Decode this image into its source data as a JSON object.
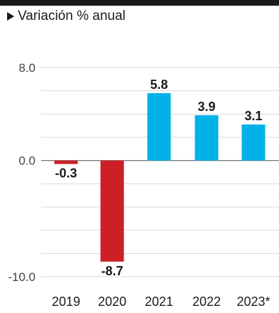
{
  "chart_data": {
    "type": "bar",
    "title": "",
    "subtitle": "Variación % anual",
    "categories": [
      "2019",
      "2020",
      "2021",
      "2022",
      "2023*"
    ],
    "values": [
      -0.3,
      -8.7,
      5.8,
      3.9,
      3.1
    ],
    "value_labels": [
      "-0.3",
      "-8.7",
      "5.8",
      "3.9",
      "3.1"
    ],
    "y_tick_labels": [
      "8.0",
      "0.0",
      "-10.0"
    ],
    "y_ticks": [
      8,
      0,
      -10
    ],
    "ylim": [
      -10,
      8
    ],
    "grid": true,
    "colors": {
      "negative": "#cc1f26",
      "positive": "#00b2e8",
      "text": "#1a1a1a",
      "grid": "#d8d8d8",
      "axis": "#666666"
    }
  }
}
